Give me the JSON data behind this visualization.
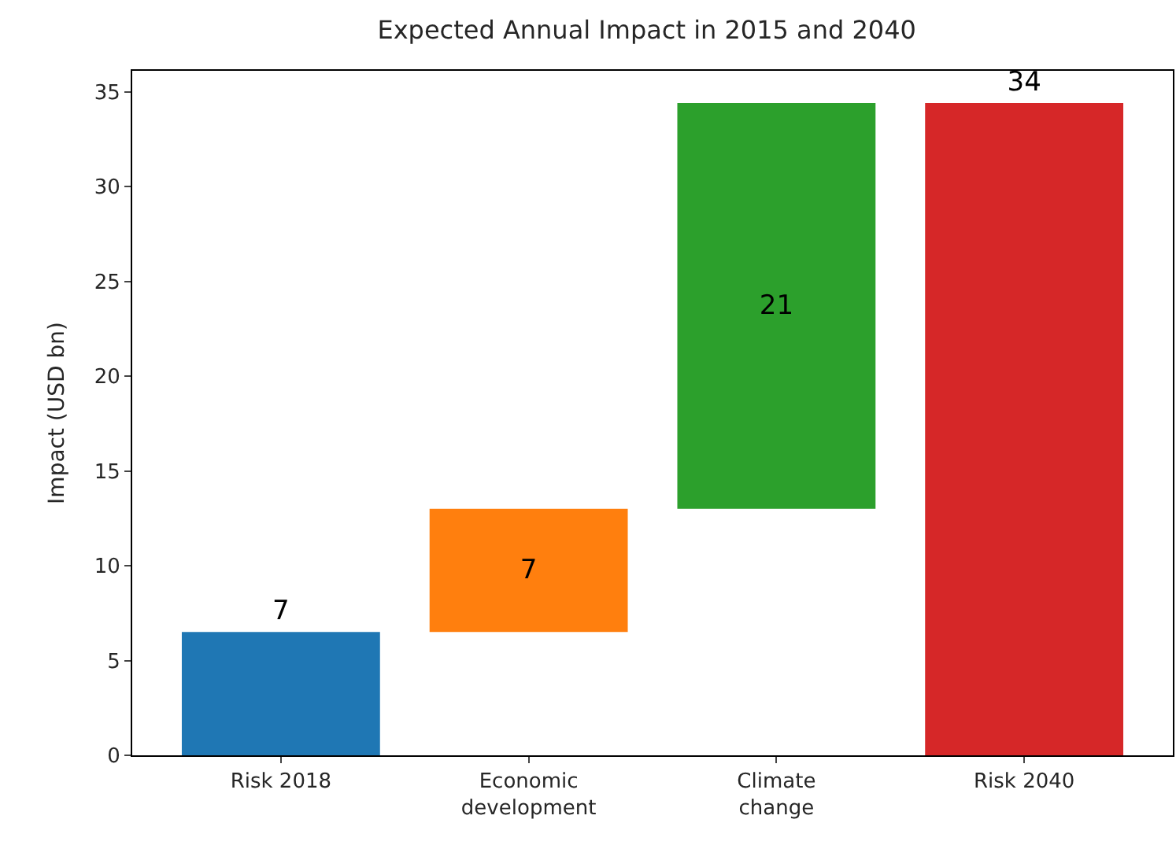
{
  "chart_data": {
    "type": "bar",
    "title": "Expected Annual Impact in 2015 and 2040",
    "ylabel": "Impact (USD bn)",
    "categories": [
      "Risk 2018",
      "Economic\ndevelopment",
      "Climate\nchange",
      "Risk 2040"
    ],
    "values": [
      6.5,
      6.5,
      21.4,
      34.4
    ],
    "base": [
      0,
      6.5,
      13.0,
      0
    ],
    "colors": [
      "#1f77b4",
      "#ff7f0e",
      "#2ca02c",
      "#d62728"
    ],
    "value_labels": [
      "7",
      "7",
      "21",
      "34"
    ],
    "ylim": [
      0,
      36.1
    ],
    "yticks": [
      0,
      5,
      10,
      15,
      20,
      25,
      30,
      35
    ]
  }
}
